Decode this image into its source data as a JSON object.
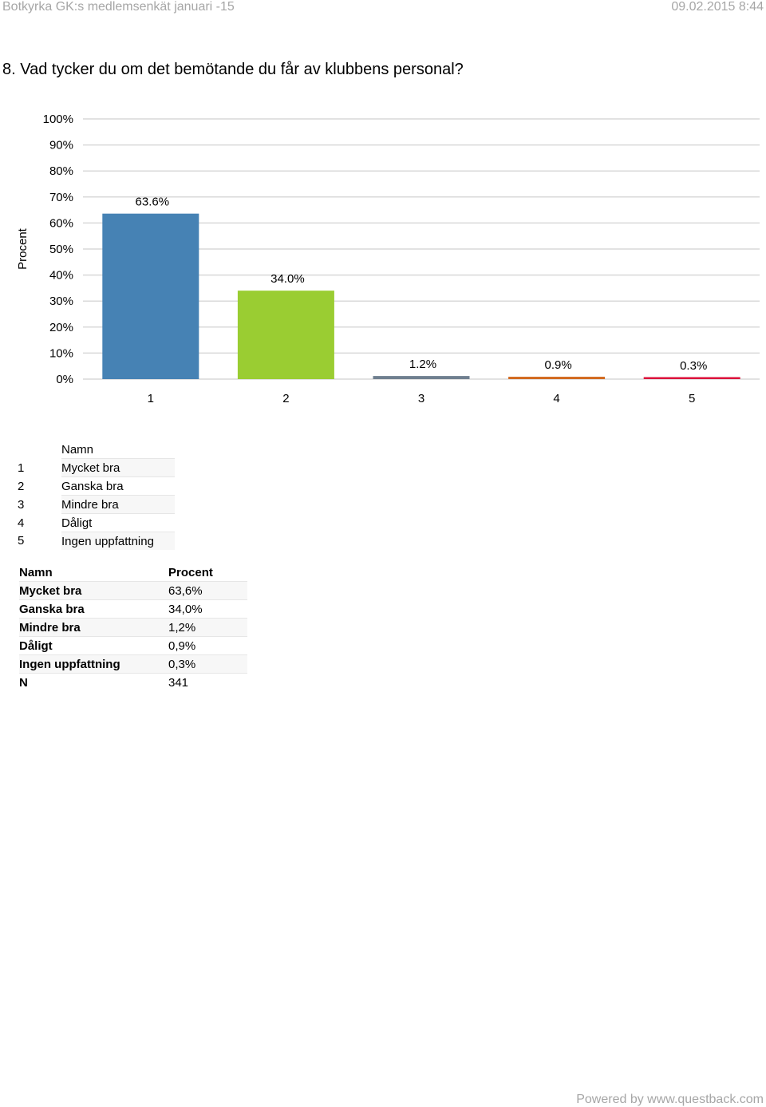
{
  "header": {
    "left": "Botkyrka GK:s medlemsenkät januari -15",
    "right": "09.02.2015 8:44"
  },
  "question": "8. Vad tycker du om det bemötande du får av klubbens personal?",
  "chart_data": {
    "type": "bar",
    "categories": [
      "1",
      "2",
      "3",
      "4",
      "5"
    ],
    "values": [
      63.6,
      34.0,
      1.2,
      0.9,
      0.3
    ],
    "data_labels": [
      "63.6%",
      "34.0%",
      "1.2%",
      "0.9%",
      "0.3%"
    ],
    "colors": [
      "#4682b4",
      "#9acd32",
      "#708090",
      "#d2691e",
      "#dc143c"
    ],
    "ylabel": "Procent",
    "xlabel": "",
    "ylim": [
      0,
      100
    ],
    "yticks": [
      "0%",
      "10%",
      "20%",
      "30%",
      "40%",
      "50%",
      "60%",
      "70%",
      "80%",
      "90%",
      "100%"
    ],
    "grid": true,
    "title": ""
  },
  "legend_table": {
    "header": "Namn",
    "rows": [
      {
        "num": "1",
        "name": "Mycket bra"
      },
      {
        "num": "2",
        "name": "Ganska bra"
      },
      {
        "num": "3",
        "name": "Mindre bra"
      },
      {
        "num": "4",
        "name": "Dåligt"
      },
      {
        "num": "5",
        "name": "Ingen uppfattning"
      }
    ]
  },
  "result_table": {
    "col_name": "Namn",
    "col_value": "Procent",
    "rows": [
      {
        "label": "Mycket bra",
        "value": "63,6%"
      },
      {
        "label": "Ganska bra",
        "value": "34,0%"
      },
      {
        "label": "Mindre bra",
        "value": "1,2%"
      },
      {
        "label": "Dåligt",
        "value": "0,9%"
      },
      {
        "label": "Ingen uppfattning",
        "value": "0,3%"
      },
      {
        "label": "N",
        "value": "341"
      }
    ]
  },
  "footer": "Powered by www.questback.com"
}
